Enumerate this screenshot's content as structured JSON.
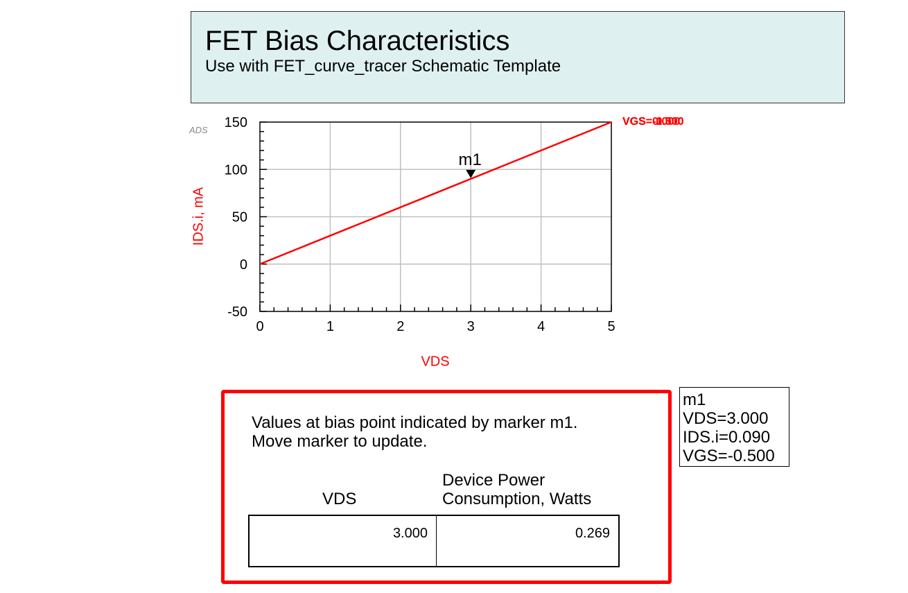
{
  "header": {
    "title": "FET Bias Characteristics",
    "subtitle": "Use with FET_curve_tracer Schematic Template"
  },
  "logo_text": "ADS",
  "chart_data": {
    "type": "line",
    "xlabel": "VDS",
    "ylabel": "IDS.i, mA",
    "xlim": [
      0,
      5
    ],
    "ylim": [
      -50,
      150
    ],
    "x_ticks": [
      "0",
      "1",
      "2",
      "3",
      "4",
      "5"
    ],
    "y_ticks": [
      "150",
      "100",
      "50",
      "0",
      "-50"
    ],
    "grid": true,
    "series": [
      {
        "name": "VGS=-0.500",
        "color": "#ff0000",
        "x": [
          0,
          5
        ],
        "y": [
          0,
          150
        ]
      }
    ],
    "overlapping_labels": [
      "VGS=-0.500",
      "VGS=0.000",
      "VGS=-1.000"
    ],
    "marker": {
      "name": "m1",
      "x": 3.0,
      "y": 90
    }
  },
  "marker_readout": {
    "name": "m1",
    "vds": "VDS=3.000",
    "ids": "IDS.i=0.090",
    "vgs": "VGS=-0.500"
  },
  "bias_panel": {
    "note_line1": "Values at bias point indicated by marker m1.",
    "note_line2": "Move marker to update.",
    "col1_header": "VDS",
    "col2_header_line1": "Device Power",
    "col2_header_line2": "Consumption, Watts",
    "vds_value": "3.000",
    "power_value": "0.269"
  },
  "colors": {
    "trace": "#ff0000",
    "title_bg": "#dff0f0",
    "panel_border": "#ff0000"
  }
}
